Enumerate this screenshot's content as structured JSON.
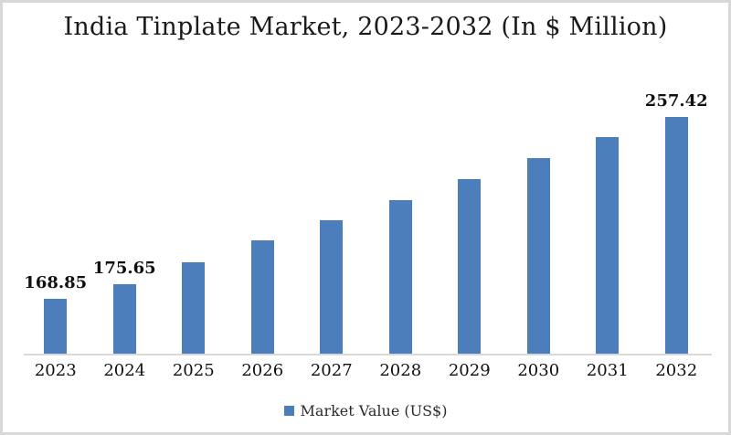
{
  "title": "India Tinplate Market, 2023-2032 (In $ Million)",
  "legend": {
    "label": "Market Value (US$)"
  },
  "colors": {
    "bar": "#4d7ebc",
    "axis_line": "#d9d9d9",
    "border": "#d8d8d8",
    "text": "#111111"
  },
  "chart_data": {
    "type": "bar",
    "title": "India Tinplate Market, 2023-2032 (In $ Million)",
    "categories": [
      "2023",
      "2024",
      "2025",
      "2026",
      "2027",
      "2028",
      "2029",
      "2030",
      "2031",
      "2032"
    ],
    "series": [
      {
        "name": "Market Value (US$)",
        "values": [
          168.85,
          175.65,
          186.7,
          197.2,
          206.9,
          216.9,
          227.3,
          237.5,
          247.4,
          257.42
        ]
      }
    ],
    "data_labels": [
      "168.85",
      "175.65",
      null,
      null,
      null,
      null,
      null,
      null,
      null,
      "257.42"
    ],
    "xlabel": "",
    "ylabel": "",
    "ylim": [
      142,
      281
    ],
    "grid": false,
    "legend_position": "bottom",
    "bar_color": "#4d7ebc"
  }
}
